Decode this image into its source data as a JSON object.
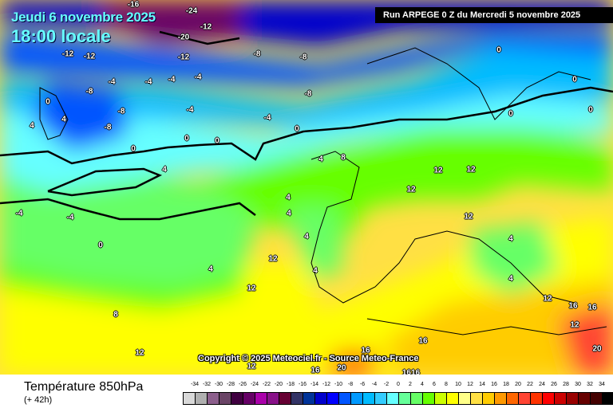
{
  "header": {
    "date": "Jeudi 6 novembre 2025",
    "time": "18:00 locale",
    "run": "Run ARPEGE 0 Z du Mercredi 5 novembre 2025"
  },
  "copyright": "Copyright © 2025 Meteociel.fr - Source Meteo-France",
  "footer": {
    "title": "Température 850hPa",
    "lead": "(+ 42h)"
  },
  "legend": {
    "ticks": [
      "-34",
      "-32",
      "-30",
      "-28",
      "-26",
      "-24",
      "-22",
      "-20",
      "-18",
      "-16",
      "-14",
      "-12",
      "-10",
      "-8",
      "-6",
      "-4",
      "-2",
      "0",
      "2",
      "4",
      "6",
      "8",
      "10",
      "12",
      "14",
      "16",
      "18",
      "20",
      "22",
      "24",
      "26",
      "28",
      "30",
      "32",
      "34"
    ],
    "colors": [
      "#d8d8d8",
      "#b0b0b0",
      "#8c5f8c",
      "#6a4466",
      "#400040",
      "#660066",
      "#aa00aa",
      "#881188",
      "#660033",
      "#333366",
      "#003399",
      "#0000cc",
      "#0000ff",
      "#0055ff",
      "#0099ff",
      "#00bbff",
      "#33ccff",
      "#66ffff",
      "#66ff99",
      "#66ff66",
      "#66ff00",
      "#ccff00",
      "#ffff00",
      "#ffff88",
      "#ffe044",
      "#ffcc00",
      "#ff9900",
      "#ff6600",
      "#ff4433",
      "#ff3300",
      "#ff0000",
      "#cc0000",
      "#990000",
      "#660000",
      "#440000",
      "#000000"
    ]
  },
  "field_labels": [
    "-16",
    "-24",
    "-20",
    "-12",
    "-12",
    "-12",
    "-12",
    "-8",
    "-8",
    "-4",
    "-4",
    "-4",
    "-4",
    "-8",
    "-8",
    "-8",
    "-4",
    "-4",
    "-8",
    "0",
    "4",
    "4",
    "0",
    "0",
    "0",
    "0",
    "4",
    "-4",
    "-4",
    "0",
    "4",
    "8",
    "4",
    "4",
    "12",
    "4",
    "12",
    "8",
    "12",
    "4",
    "4",
    "12",
    "12",
    "12",
    "12",
    "4",
    "4",
    "12",
    "16",
    "16",
    "12",
    "16",
    "16",
    "1616",
    "20",
    "20",
    "0",
    "0",
    "0",
    "0",
    "12",
    "16"
  ]
}
